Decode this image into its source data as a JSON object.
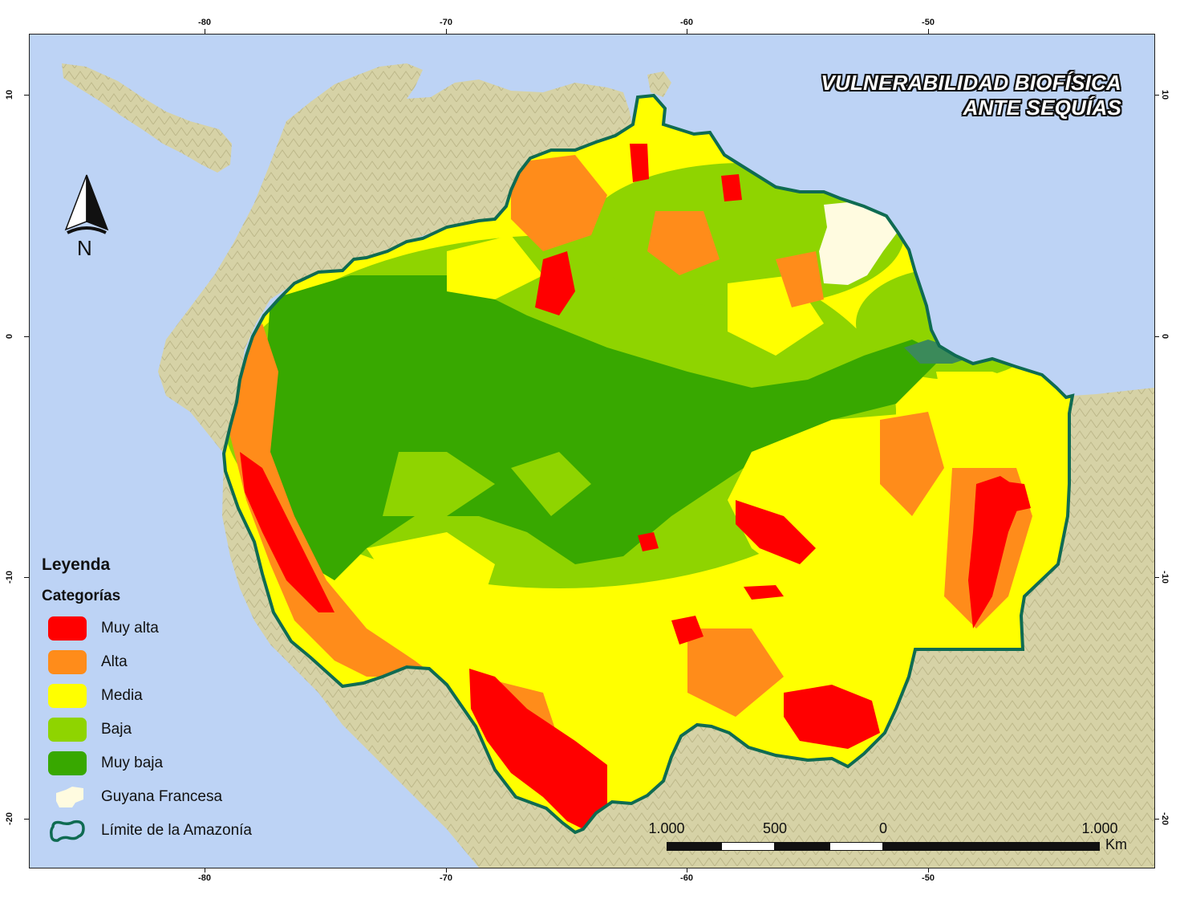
{
  "map": {
    "title_line1": "VULNERABILIDAD BIOFÍSICA",
    "title_line2": "ANTE SEQUÍAS",
    "north_label": "N"
  },
  "axes": {
    "top": [
      "-80",
      "-70",
      "-60",
      "-50"
    ],
    "bottom": [
      "-80",
      "-70",
      "-60",
      "-50"
    ],
    "left": [
      "10",
      "0",
      "-10",
      "-20"
    ],
    "right": [
      "10",
      "0",
      "-10",
      "-20"
    ]
  },
  "legend": {
    "title": "Leyenda",
    "subtitle": "Categorías",
    "items": [
      {
        "label": "Muy alta",
        "color": "#ff0000"
      },
      {
        "label": "Alta",
        "color": "#ff8c1a"
      },
      {
        "label": "Media",
        "color": "#ffff00"
      },
      {
        "label": "Baja",
        "color": "#8fd400"
      },
      {
        "label": "Muy baja",
        "color": "#38a800"
      },
      {
        "label": "Guyana Francesa",
        "color": "#fffbe0"
      },
      {
        "label": "Límite de la Amazonía",
        "color": "#0f6b52"
      }
    ]
  },
  "scale": {
    "labels": [
      "1.000",
      "500",
      "0",
      "1.000"
    ],
    "units": "Km"
  },
  "colors": {
    "ocean": "#bdd3f5",
    "land": "#d6d2a6",
    "boundary": "#0f6b52"
  }
}
